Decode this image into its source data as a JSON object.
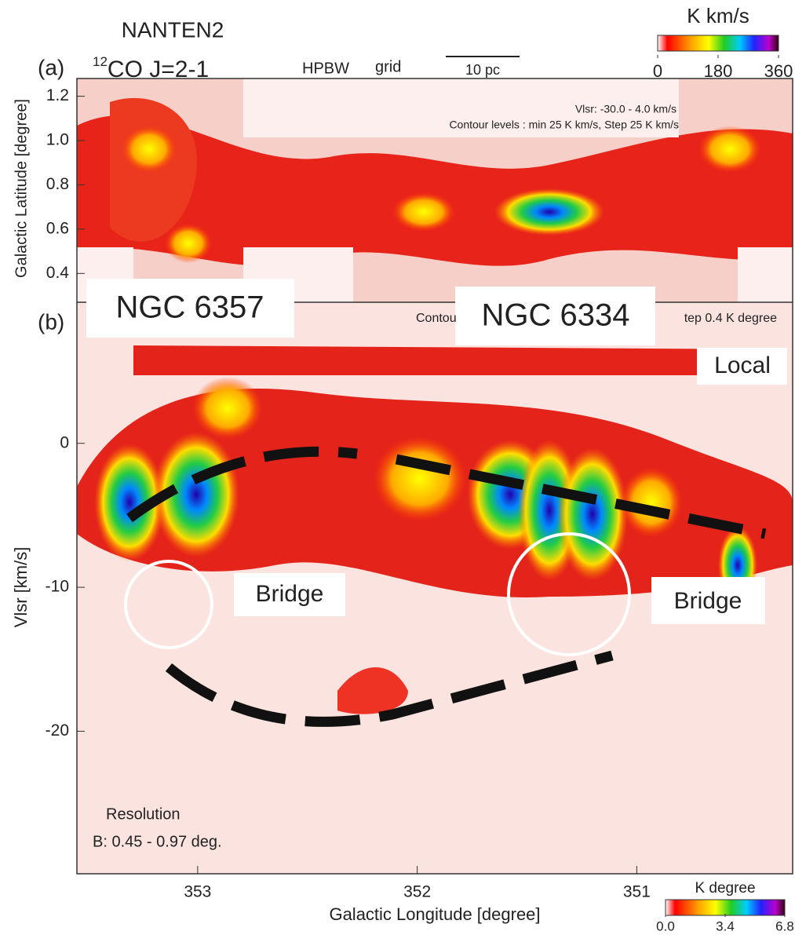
{
  "header": {
    "observatory": "NANTEN2"
  },
  "panel_a": {
    "label": "(a)",
    "line_prefix": "12",
    "line": "CO J=2-1",
    "hpbw": "HPBW",
    "grid": "grid",
    "scale": "10 pc",
    "velocity_range": "Vlsr: -30.0 - 4.0 km/s",
    "contours": "Contour levels : min 25 K km/s, Step 25 K km/s",
    "y_label": "Galactic Latitude [degree]",
    "ylim": [
      0.27,
      1.28
    ],
    "yticks": [
      0.4,
      0.6,
      0.8,
      {
        "value": 1,
        "label": "1.0"
      },
      1.2
    ],
    "colorbar": {
      "title": "K km/s",
      "lim": [
        0,
        360
      ],
      "ticks": [
        0,
        180,
        360
      ]
    }
  },
  "panel_b": {
    "label": "(b)",
    "contour_left": "Contou",
    "contour_right": "tep 0.4 K degree",
    "region_left": "NGC 6357",
    "region_right": "NGC 6334",
    "local": "Local",
    "bridge_left": "Bridge",
    "bridge_right": "Bridge",
    "resolution": "Resolution",
    "b_range": "B: 0.45 - 0.97 deg.",
    "y_label": "Vlsr [km/s]",
    "x_label": "Galactic Longitude [degree]",
    "xlim": [
      353.55,
      350.29
    ],
    "xticks": [
      353,
      352,
      351
    ],
    "ylim": [
      -29.9,
      9.8
    ],
    "yticks": [
      -20,
      -10,
      0
    ],
    "colorbar": {
      "title": "K degree",
      "lim": [
        0,
        6.8
      ],
      "ticks": [
        {
          "value": 0,
          "label": "0.0"
        },
        3.4,
        6.8
      ]
    }
  }
}
